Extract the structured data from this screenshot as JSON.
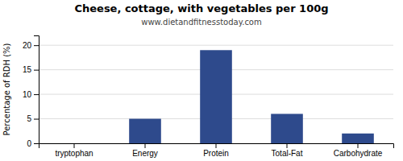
{
  "chart_data": {
    "type": "bar",
    "title": "Cheese, cottage, with vegetables per 100g",
    "subtitle": "www.dietandfitnesstoday.com",
    "categories": [
      "tryptophan",
      "Energy",
      "Protein",
      "Total-Fat",
      "Carbohydrate"
    ],
    "values": [
      0.0,
      5.0,
      19.0,
      6.0,
      2.0
    ],
    "color": "#2e4a8c",
    "ylabel": "Percentage of RDH (%)",
    "ylim": [
      0,
      22
    ],
    "yticks": [
      0,
      5,
      10,
      15,
      20
    ],
    "grid": true
  }
}
